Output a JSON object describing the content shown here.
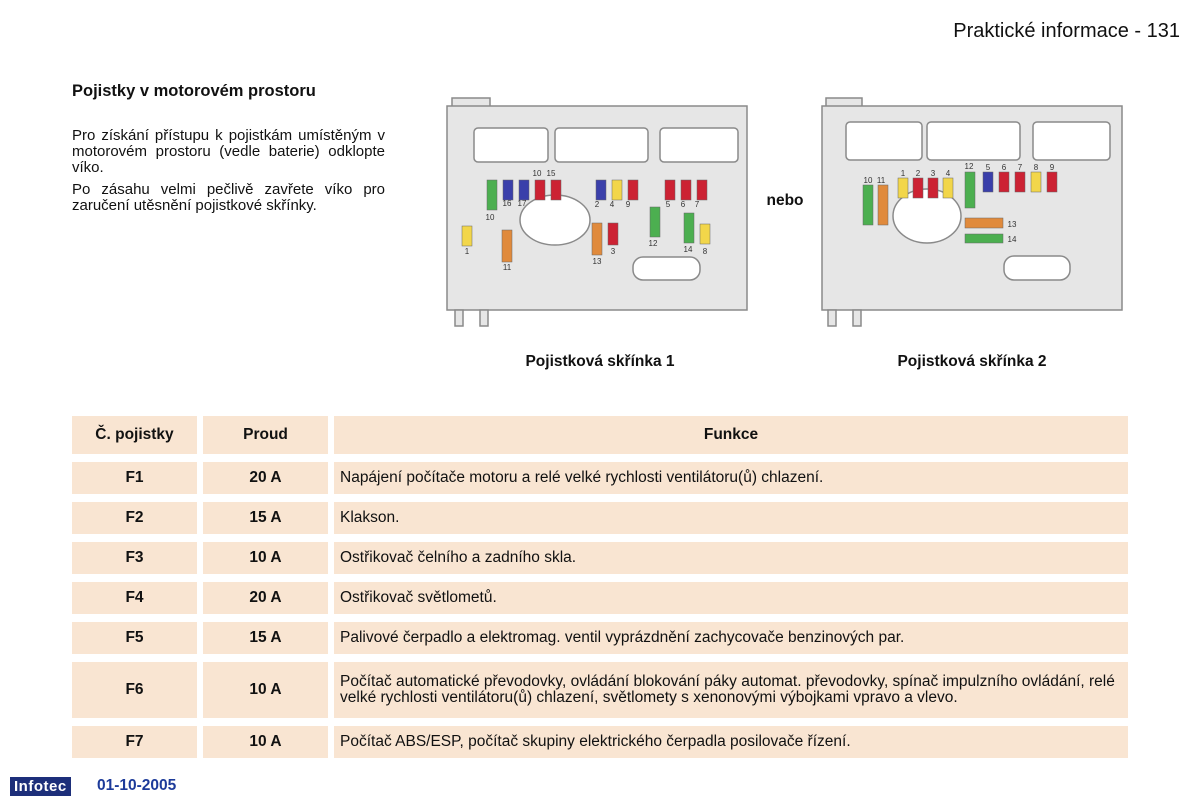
{
  "header": {
    "title": "Praktické informace - 131"
  },
  "intro": {
    "heading": "Pojistky v motorovém prostoru",
    "paragraphs": [
      "Pro získání přístupu k pojistkám umístěným v motorovém prostoru (vedle baterie) odklopte víko.",
      "Po zásahu velmi pečlivě zavřete víko pro zaručení utěsnění pojistkové skřínky."
    ]
  },
  "figures": {
    "separator": "nebo",
    "box1": {
      "caption": "Pojistková skřínka 1",
      "labels": [
        "10",
        "15",
        "16",
        "17",
        "10",
        "2",
        "4",
        "9",
        "5",
        "6",
        "7",
        "12",
        "14",
        "8",
        "13",
        "3",
        "1",
        "11"
      ]
    },
    "box2": {
      "caption": "Pojistková skřínka 2",
      "labels": [
        "10",
        "11",
        "1",
        "2",
        "3",
        "4",
        "12",
        "5",
        "6",
        "7",
        "8",
        "9",
        "13",
        "14"
      ]
    }
  },
  "table": {
    "header": [
      "Č. pojistky",
      "Proud",
      "Funkce"
    ],
    "rows": [
      [
        "F1",
        "20 A",
        "Napájení počítače motoru a relé velké rychlosti ventilátoru(ů) chlazení."
      ],
      [
        "F2",
        "15 A",
        "Klakson."
      ],
      [
        "F3",
        "10 A",
        "Ostřikovač čelního a zadního skla."
      ],
      [
        "F4",
        "20 A",
        "Ostřikovač světlometů."
      ],
      [
        "F5",
        "15 A",
        "Palivové čerpadlo a elektromag. ventil vyprázdnění zachycovače benzinových par."
      ],
      [
        "F6",
        "10 A",
        "Počítač automatické převodovky, ovládání blokování páky automat. převodovky, spínač impulzního ovládání, relé velké rychlosti ventilátoru(ů) chlazení, světlomety s xenonovými výbojkami vpravo a vlevo."
      ],
      [
        "F7",
        "10 A",
        "Počítač ABS/ESP, počítač skupiny elektrického čerpadla posilovače řízení."
      ]
    ]
  },
  "footer": {
    "logo": "Infotec",
    "date": "01-10-2005"
  }
}
